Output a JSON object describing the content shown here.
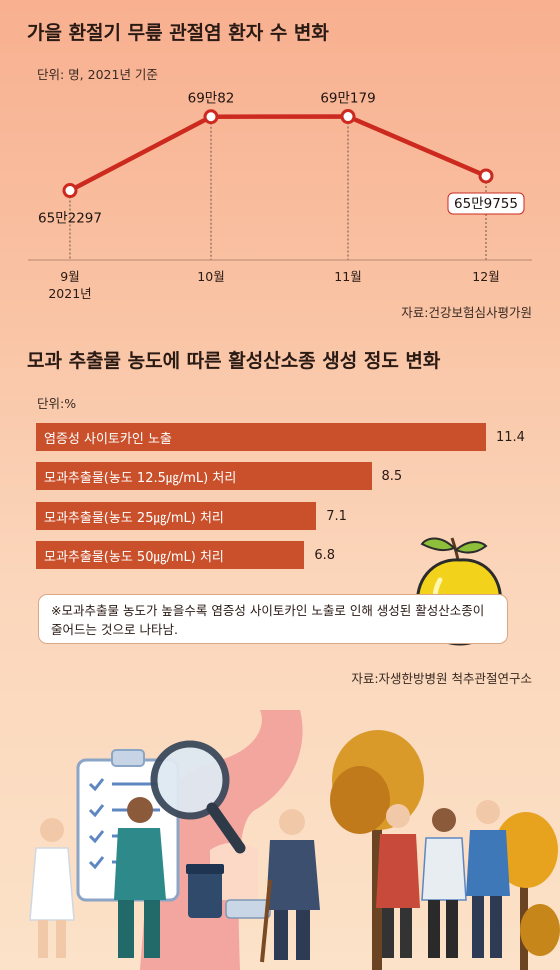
{
  "chart_data": [
    {
      "type": "line",
      "title": "가을 환절기 무릎 관절염 환자 수 변화",
      "unit_label": "단위: 명, 2021년 기준",
      "categories": [
        "9월",
        "10월",
        "11월",
        "12월"
      ],
      "category_sublabels": [
        "2021년",
        "",
        "",
        ""
      ],
      "values": [
        652297,
        690082,
        690179,
        659755
      ],
      "value_labels": [
        "65만2297",
        "69만82",
        "69만179",
        "65만9755"
      ],
      "source": "자료:건강보험심사평가원",
      "line_color": "#cc2a1f"
    },
    {
      "type": "bar",
      "title": "모과 추출물 농도에 따른 활성산소종 생성 정도 변화",
      "unit_label": "단위:%",
      "categories": [
        "염증성 사이토카인 노출",
        "모과추출물(농도 12.5㎍/mL) 처리",
        "모과추출물(농도 25㎍/mL) 처리",
        "모과추출물(농도 50㎍/mL) 처리"
      ],
      "values": [
        11.4,
        8.5,
        7.1,
        6.8
      ],
      "value_labels": [
        "11.4",
        "8.5",
        "7.1",
        "6.8"
      ],
      "bar_color": "#c9502a",
      "note": "※모과추출물 농도가 높을수록 염증성 사이토카인 노출로 인해 생성된 활성산소종이 줄어드는 것으로 나타남.",
      "source": "자료:자생한방병원 척추관절연구소"
    }
  ],
  "illustration": {
    "icons": [
      "quince-icon",
      "clipboard-icon",
      "magnifier-icon",
      "knee-joint-icon",
      "tree-icon",
      "person-icon"
    ]
  }
}
